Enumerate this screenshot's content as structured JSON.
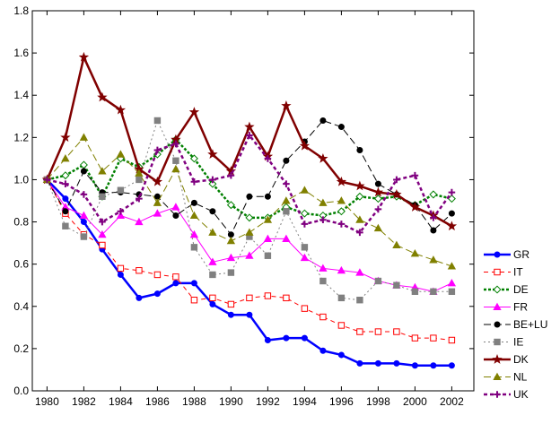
{
  "chart_data": {
    "type": "line",
    "title": "",
    "xlabel": "",
    "ylabel": "",
    "x": [
      1980,
      1981,
      1982,
      1983,
      1984,
      1985,
      1986,
      1987,
      1988,
      1989,
      1990,
      1991,
      1992,
      1993,
      1994,
      1995,
      1996,
      1997,
      1998,
      1999,
      2000,
      2001,
      2002
    ],
    "xticks": [
      1980,
      1982,
      1984,
      1986,
      1988,
      1990,
      1992,
      1994,
      1996,
      1998,
      2000,
      2002
    ],
    "xlim": [
      1979.2,
      2003.2
    ],
    "ylim": [
      0.0,
      1.8
    ],
    "yticks": [
      "0.0",
      "0.2",
      "0.4",
      "0.6",
      "0.8",
      "1.0",
      "1.2",
      "1.4",
      "1.6",
      "1.8"
    ],
    "grid": false,
    "legend_position": "right",
    "series": [
      {
        "name": "GR",
        "color": "#0000ff",
        "dash": "solid",
        "width": 2.5,
        "marker": "circle",
        "markerFill": "#0000ff",
        "values": [
          1.0,
          0.91,
          0.8,
          0.67,
          0.55,
          0.44,
          0.46,
          0.51,
          0.51,
          0.41,
          0.36,
          0.36,
          0.24,
          0.25,
          0.25,
          0.19,
          0.17,
          0.13,
          0.13,
          0.13,
          0.12,
          0.12,
          0.12
        ]
      },
      {
        "name": "IT",
        "color": "#ff0000",
        "dash": "5,4",
        "width": 1,
        "marker": "square-open",
        "markerFill": "#ffffff",
        "values": [
          1.0,
          0.84,
          0.74,
          0.69,
          0.58,
          0.57,
          0.55,
          0.54,
          0.43,
          0.44,
          0.41,
          0.44,
          0.45,
          0.44,
          0.39,
          0.35,
          0.31,
          0.28,
          0.28,
          0.28,
          0.25,
          0.25,
          0.24
        ]
      },
      {
        "name": "DE",
        "color": "#008000",
        "dash": "3,2",
        "width": 2.5,
        "marker": "diamond-open",
        "markerFill": "#ffffff",
        "values": [
          1.0,
          1.02,
          1.07,
          0.92,
          1.1,
          1.06,
          1.12,
          1.19,
          1.1,
          0.98,
          0.88,
          0.82,
          0.82,
          0.87,
          0.84,
          0.83,
          0.85,
          0.92,
          0.91,
          0.92,
          0.88,
          0.93,
          0.91
        ]
      },
      {
        "name": "FR",
        "color": "#ff00ff",
        "dash": "solid",
        "width": 1,
        "marker": "triangle",
        "markerFill": "#ff00ff",
        "values": [
          1.0,
          0.87,
          0.83,
          0.74,
          0.83,
          0.8,
          0.84,
          0.87,
          0.74,
          0.61,
          0.63,
          0.64,
          0.72,
          0.72,
          0.63,
          0.58,
          0.57,
          0.56,
          0.52,
          0.5,
          0.49,
          0.47,
          0.51
        ]
      },
      {
        "name": "BE+LU",
        "color": "#000000",
        "dash": "8,4",
        "width": 1,
        "marker": "circle",
        "markerFill": "#000000",
        "values": [
          1.0,
          0.85,
          1.04,
          0.94,
          0.94,
          0.93,
          0.92,
          0.83,
          0.89,
          0.85,
          0.74,
          0.92,
          0.92,
          1.09,
          1.18,
          1.28,
          1.25,
          1.14,
          0.98,
          0.93,
          0.88,
          0.76,
          0.84
        ]
      },
      {
        "name": "IE",
        "color": "#808080",
        "dash": "2,3",
        "width": 1,
        "marker": "square",
        "markerFill": "#808080",
        "values": [
          1.0,
          0.78,
          0.73,
          0.92,
          0.95,
          1.0,
          1.28,
          1.09,
          0.68,
          0.55,
          0.56,
          0.73,
          0.64,
          0.85,
          0.68,
          0.52,
          0.44,
          0.43,
          0.52,
          0.5,
          0.47,
          0.47,
          0.47
        ]
      },
      {
        "name": "DK",
        "color": "#800000",
        "dash": "solid",
        "width": 2.5,
        "marker": "star",
        "markerFill": "#800000",
        "values": [
          1.0,
          1.2,
          1.58,
          1.39,
          1.33,
          1.05,
          0.99,
          1.19,
          1.32,
          1.12,
          1.04,
          1.25,
          1.11,
          1.35,
          1.16,
          1.1,
          0.99,
          0.97,
          0.94,
          0.93,
          0.87,
          0.83,
          0.78
        ]
      },
      {
        "name": "NL",
        "color": "#808000",
        "dash": "8,4",
        "width": 1,
        "marker": "triangle",
        "markerFill": "#808000",
        "values": [
          1.0,
          1.1,
          1.2,
          1.04,
          1.12,
          1.03,
          0.89,
          1.05,
          0.83,
          0.75,
          0.71,
          0.75,
          0.81,
          0.9,
          0.95,
          0.89,
          0.9,
          0.81,
          0.77,
          0.69,
          0.65,
          0.62,
          0.59
        ]
      },
      {
        "name": "UK",
        "color": "#800080",
        "dash": "4,3",
        "width": 2.5,
        "marker": "plus",
        "markerFill": "#800080",
        "values": [
          1.0,
          0.98,
          0.93,
          0.8,
          0.85,
          0.91,
          1.14,
          1.17,
          0.99,
          1.0,
          1.02,
          1.21,
          1.1,
          0.98,
          0.79,
          0.81,
          0.79,
          0.75,
          0.86,
          1.0,
          1.02,
          0.82,
          0.94
        ]
      }
    ]
  }
}
